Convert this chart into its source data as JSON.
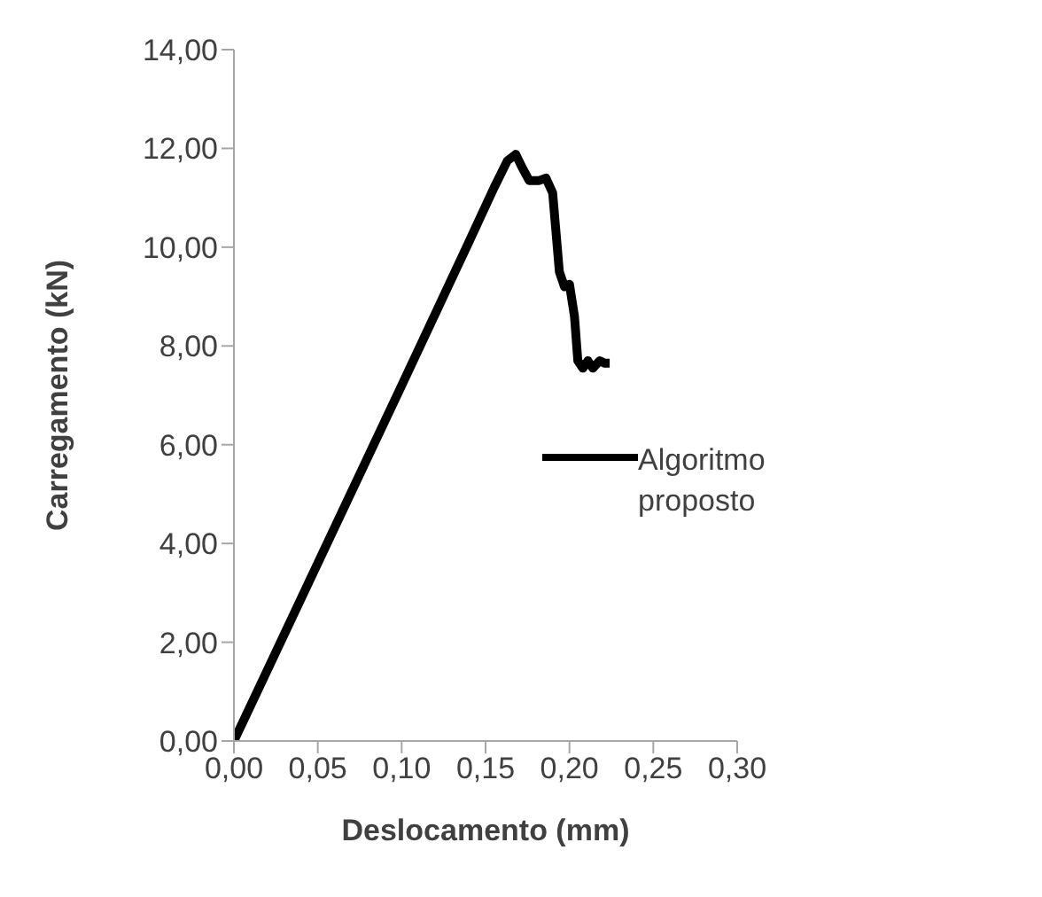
{
  "chart_data": {
    "type": "line",
    "xlabel": "Deslocamento (mm)",
    "ylabel": "Carregamento (kN)",
    "xlim": [
      0,
      0.3
    ],
    "ylim": [
      0,
      14
    ],
    "xticks": [
      {
        "value": 0,
        "label": "0,00"
      },
      {
        "value": 0.05,
        "label": "0,05"
      },
      {
        "value": 0.1,
        "label": "0,10"
      },
      {
        "value": 0.15,
        "label": "0,15"
      },
      {
        "value": 0.2,
        "label": "0,20"
      },
      {
        "value": 0.25,
        "label": "0,25"
      },
      {
        "value": 0.3,
        "label": "0,30"
      }
    ],
    "yticks": [
      {
        "value": 0,
        "label": "0,00"
      },
      {
        "value": 2,
        "label": "2,00"
      },
      {
        "value": 4,
        "label": "4,00"
      },
      {
        "value": 6,
        "label": "6,00"
      },
      {
        "value": 8,
        "label": "8,00"
      },
      {
        "value": 10,
        "label": "10,00"
      },
      {
        "value": 12,
        "label": "12,00"
      },
      {
        "value": 14,
        "label": "14,00"
      }
    ],
    "grid": false,
    "legend": "right",
    "marker": "none",
    "line_style": "solid",
    "series": [
      {
        "name": "Algoritmo proposto",
        "color": "#000000",
        "x": [
          0,
          0.05,
          0.1,
          0.14,
          0.155,
          0.163,
          0.168,
          0.172,
          0.176,
          0.182,
          0.186,
          0.19,
          0.192,
          0.194,
          0.197,
          0.2,
          0.203,
          0.205,
          0.208,
          0.211,
          0.214,
          0.218,
          0.221,
          0.224
        ],
        "values": [
          0,
          3.6,
          7.2,
          10.1,
          11.2,
          11.75,
          11.88,
          11.6,
          11.35,
          11.35,
          11.4,
          11.1,
          10.3,
          9.5,
          9.2,
          9.25,
          8.6,
          7.7,
          7.55,
          7.7,
          7.55,
          7.7,
          7.65,
          7.65
        ]
      }
    ]
  }
}
